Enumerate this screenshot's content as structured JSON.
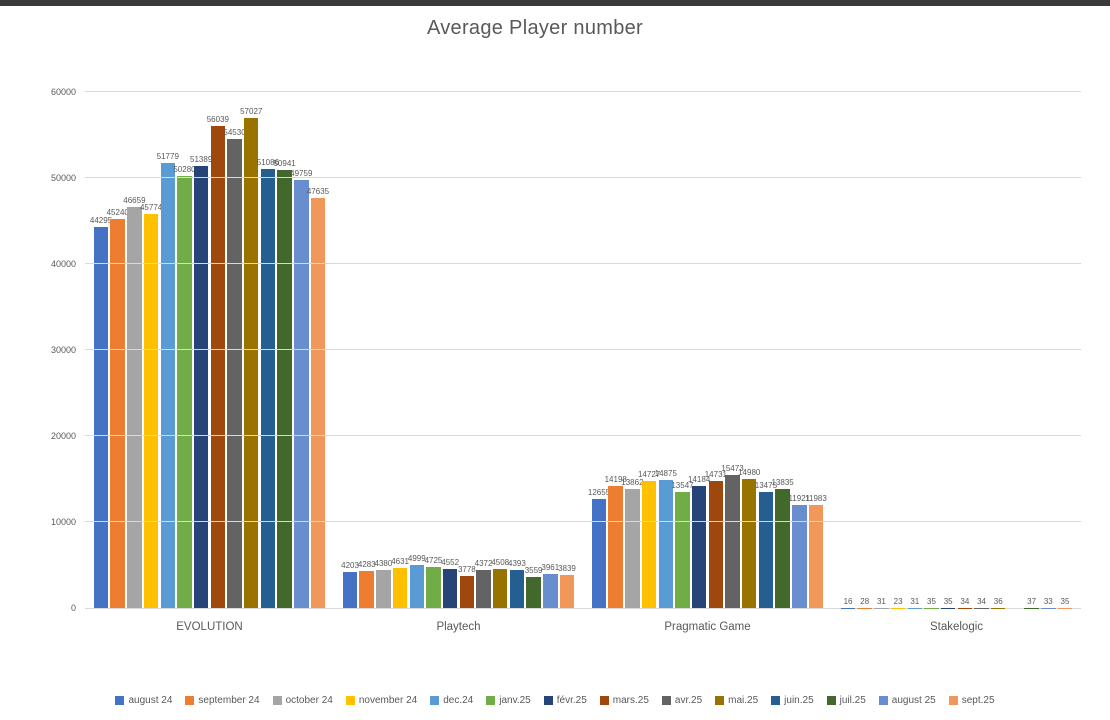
{
  "page": {
    "background": "#ffffff",
    "top_strip_color": "#3a3a3a",
    "text_color": "#595959",
    "grid_color": "#d9d9d9"
  },
  "chart_data": {
    "type": "bar",
    "title": "Average Player number",
    "categories": [
      "EVOLUTION",
      "Playtech",
      "Pragmatic Game",
      "Stakelogic"
    ],
    "series": [
      {
        "name": "august 24",
        "color": "#4472C4",
        "values": [
          44295,
          4203,
          12655,
          16
        ]
      },
      {
        "name": "september 24",
        "color": "#ED7D31",
        "values": [
          45240,
          4283,
          14198,
          28
        ]
      },
      {
        "name": "october 24",
        "color": "#A5A5A5",
        "values": [
          46659,
          4380,
          13862,
          31
        ]
      },
      {
        "name": "november 24",
        "color": "#FFC000",
        "values": [
          45774,
          4631,
          14727,
          23
        ]
      },
      {
        "name": "dec.24",
        "color": "#5B9BD5",
        "values": [
          51779,
          4999,
          14875,
          31
        ]
      },
      {
        "name": "janv.25",
        "color": "#70AD47",
        "values": [
          50280,
          4725,
          13547,
          35
        ]
      },
      {
        "name": "févr.25",
        "color": "#264478",
        "values": [
          51389,
          4552,
          14184,
          35
        ]
      },
      {
        "name": "mars.25",
        "color": "#9E480E",
        "values": [
          56039,
          3778,
          14731,
          34
        ]
      },
      {
        "name": "avr.25",
        "color": "#636363",
        "values": [
          54530,
          4372,
          15473,
          34
        ]
      },
      {
        "name": "mai.25",
        "color": "#997300",
        "values": [
          57027,
          4508,
          14980,
          36
        ]
      },
      {
        "name": "juin.25",
        "color": "#255E91",
        "values": [
          51086,
          4393,
          13475,
          null
        ]
      },
      {
        "name": "juil.25",
        "color": "#43682B",
        "values": [
          50941,
          3559,
          13835,
          37
        ]
      },
      {
        "name": "august 25",
        "color": "#698ED0",
        "values": [
          49759,
          3961,
          11921,
          33
        ]
      },
      {
        "name": "sept.25",
        "color": "#F1975A",
        "values": [
          47635,
          3839,
          11983,
          35
        ]
      }
    ],
    "ylim": [
      0,
      60000
    ],
    "ytick_interval": 10000,
    "yticks": [
      "0",
      "10000",
      "20000",
      "30000",
      "40000",
      "50000",
      "60000"
    ],
    "grid": true,
    "data_labels": true,
    "legend_position": "bottom"
  }
}
